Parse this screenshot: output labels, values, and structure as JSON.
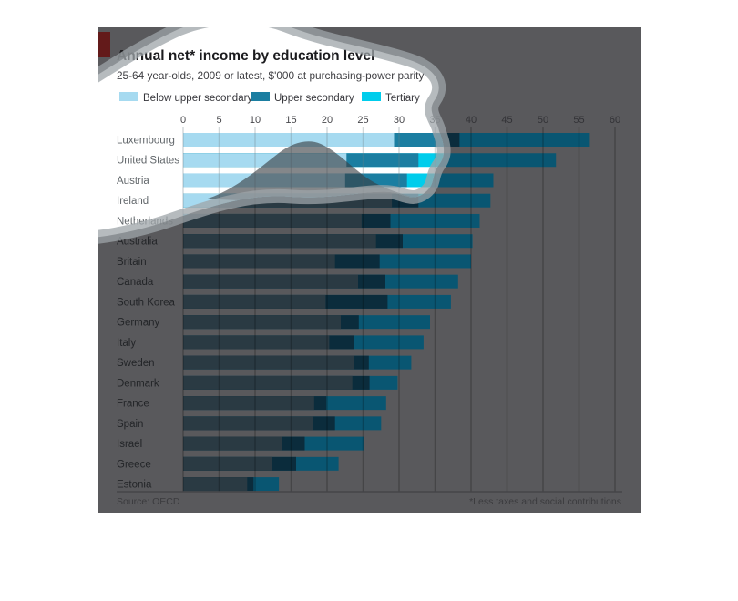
{
  "header": {
    "title": "Annual net* income by education level",
    "subtitle": "25-64 year-olds, 2009 or latest, $'000 at purchasing-power parity"
  },
  "legend": {
    "below_label": "Below upper secondary",
    "upper_label": "Upper secondary",
    "tertiary_label": "Tertiary"
  },
  "footer": {
    "source": "Source: OECD",
    "footnote": "*Less taxes and social contributions"
  },
  "chart_data": {
    "type": "bar",
    "orientation": "horizontal",
    "title": "Annual net* income by education level",
    "subtitle": "25-64 year-olds, 2009 or latest, $'000 at purchasing-power parity",
    "xlabel": "",
    "ylabel": "",
    "xlim": [
      0,
      60
    ],
    "x_ticks": [
      0,
      5,
      10,
      15,
      20,
      25,
      30,
      35,
      40,
      45,
      50,
      55,
      60
    ],
    "grid": true,
    "legend_position": "top",
    "categories": [
      "Luxembourg",
      "United States",
      "Austria",
      "Ireland",
      "Netherlands",
      "Australia",
      "Britain",
      "Canada",
      "South Korea",
      "Germany",
      "Italy",
      "Sweden",
      "Denmark",
      "France",
      "Spain",
      "Israel",
      "Greece",
      "Estonia"
    ],
    "series": [
      {
        "name": "Below upper secondary",
        "values": [
          29.3,
          22.7,
          22.5,
          29.0,
          24.8,
          26.8,
          21.1,
          24.3,
          19.8,
          21.9,
          20.3,
          23.7,
          23.5,
          18.2,
          18.0,
          13.8,
          12.4,
          8.9
        ]
      },
      {
        "name": "Upper secondary",
        "values": [
          38.4,
          32.7,
          31.1,
          32.7,
          28.8,
          30.5,
          27.3,
          28.1,
          28.4,
          24.4,
          23.8,
          25.8,
          25.9,
          19.9,
          21.1,
          16.9,
          15.7,
          9.8
        ]
      },
      {
        "name": "Tertiary",
        "values": [
          56.5,
          51.8,
          43.1,
          42.7,
          41.2,
          40.2,
          40.0,
          38.2,
          37.2,
          34.3,
          33.4,
          31.7,
          29.8,
          28.2,
          27.5,
          25.1,
          21.6,
          13.3
        ]
      }
    ]
  },
  "palette": {
    "bright": {
      "below": "#a6daf0",
      "upper": "#1b7ea1",
      "tertiary": "#00cdec",
      "bg": "#ffffff",
      "grid": "rgba(110,125,132,0.30)",
      "tick": "#47474b",
      "label": "#63686c",
      "title": "#1b1b1e",
      "subtitle": "#3e3e42",
      "legend_text": "#35353a",
      "source": "#6a6a6e",
      "tab": "#c03a2e",
      "axis": "#9aa4a8"
    },
    "dark": {
      "below": "#2a3a43",
      "upper": "#0b2c3c",
      "tertiary": "#095672",
      "bg": "#59595c",
      "grid": "rgba(0,0,0,0.22)",
      "tick": "#323236",
      "label": "#232528",
      "title": "#1d1d1f",
      "subtitle": "#2c2c2f",
      "legend_text": "#2c2c2f",
      "source": "#3b3b3e",
      "tab": "#631a1a",
      "axis": "#454548"
    }
  }
}
